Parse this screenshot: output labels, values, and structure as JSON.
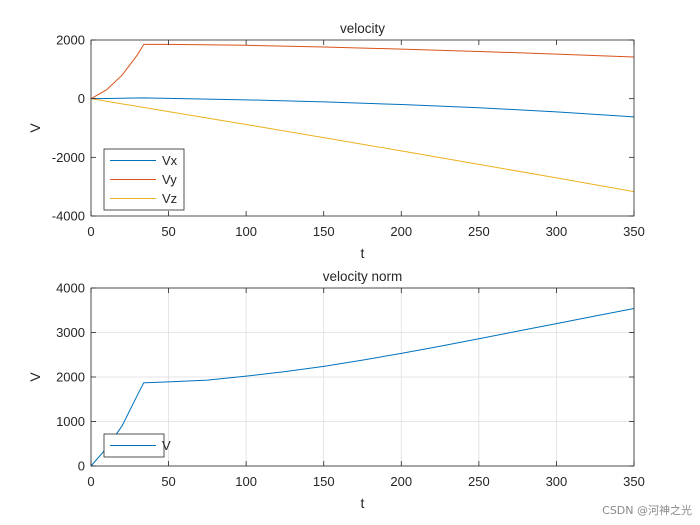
{
  "chart_data": [
    {
      "type": "line",
      "title": "velocity",
      "xlabel": "t",
      "ylabel": "V",
      "xlim": [
        0,
        350
      ],
      "ylim": [
        -4000,
        2000
      ],
      "xticks": [
        0,
        50,
        100,
        150,
        200,
        250,
        300,
        350
      ],
      "yticks": [
        -4000,
        -2000,
        0,
        2000
      ],
      "grid": false,
      "legend_position": "lower-left",
      "series": [
        {
          "name": "Vx",
          "color": "#0072BD",
          "x": [
            0,
            10,
            20,
            34,
            50,
            100,
            150,
            200,
            250,
            300,
            350
          ],
          "y": [
            0,
            5,
            15,
            25,
            10,
            -40,
            -110,
            -200,
            -310,
            -450,
            -620
          ]
        },
        {
          "name": "Vy",
          "color": "#D95319",
          "x": [
            0,
            10,
            20,
            25,
            30,
            34,
            35,
            50,
            100,
            150,
            200,
            250,
            300,
            350
          ],
          "y": [
            0,
            300,
            800,
            1150,
            1500,
            1850,
            1850,
            1850,
            1820,
            1760,
            1690,
            1610,
            1520,
            1420
          ]
        },
        {
          "name": "Vz",
          "color": "#EDB120",
          "x": [
            0,
            50,
            100,
            150,
            200,
            250,
            300,
            350
          ],
          "y": [
            0,
            -440,
            -880,
            -1330,
            -1780,
            -2240,
            -2700,
            -3170
          ]
        }
      ]
    },
    {
      "type": "line",
      "title": "velocity norm",
      "xlabel": "t",
      "ylabel": "V",
      "xlim": [
        0,
        350
      ],
      "ylim": [
        0,
        4000
      ],
      "xticks": [
        0,
        50,
        100,
        150,
        200,
        250,
        300,
        350
      ],
      "yticks": [
        0,
        1000,
        2000,
        3000,
        4000
      ],
      "grid": true,
      "legend_position": "lower-left",
      "series": [
        {
          "name": "V",
          "color": "#0072BD",
          "x": [
            0,
            10,
            20,
            25,
            30,
            34,
            35,
            50,
            75,
            100,
            125,
            150,
            175,
            200,
            225,
            250,
            275,
            300,
            325,
            350
          ],
          "y": [
            0,
            400,
            900,
            1250,
            1600,
            1870,
            1870,
            1890,
            1930,
            2020,
            2120,
            2240,
            2380,
            2530,
            2690,
            2860,
            3030,
            3200,
            3370,
            3540
          ]
        }
      ]
    }
  ],
  "watermark": "CSDN @河神之光"
}
